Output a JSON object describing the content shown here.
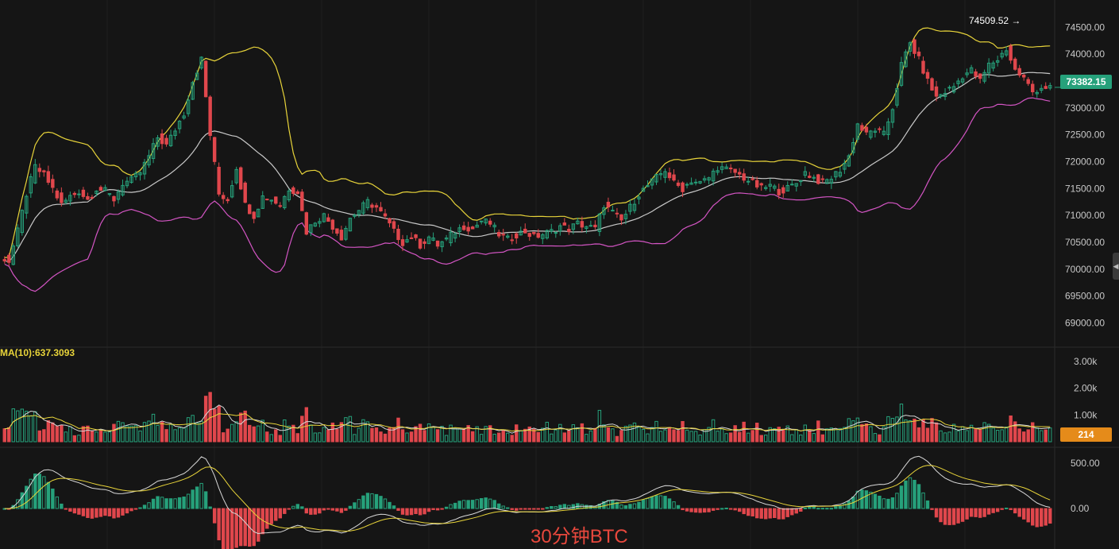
{
  "chart_data": {
    "type": "candlestick",
    "instrument": "BTC",
    "interval": "30分钟",
    "watermark": "30分钟BTC",
    "last_price": "73382.15",
    "high_marker": {
      "label": "74509.52",
      "arrow": "→"
    },
    "price_axis_ticks": [
      "74500.00",
      "74000.00",
      "73500.00",
      "73000.00",
      "72500.00",
      "72000.00",
      "71500.00",
      "71000.00",
      "70500.00",
      "70000.00",
      "69500.00",
      "69000.00"
    ],
    "price_range": [
      68800,
      74800
    ],
    "volume_indicator_label": "MA(10):637.3093",
    "volume_last": "214",
    "volume_axis_ticks": [
      "3.00k",
      "2.00k",
      "1.00k"
    ],
    "volume_range": [
      0,
      3300
    ],
    "macd_axis_ticks": [
      "500.00",
      "0.00"
    ],
    "macd_range": [
      -420,
      640
    ],
    "colors": {
      "up": "#26a17b",
      "down": "#e0474c",
      "bb_upper": "#e8d43a",
      "bb_mid": "#c9c9c9",
      "bb_lower": "#d455c4",
      "macd_dif": "#d8d8d8",
      "macd_dea": "#e8d43a",
      "vol_ma1": "#d8d8d8",
      "vol_ma2": "#e8d43a"
    },
    "series": [
      {
        "c": 70250
      },
      {
        "c": 70150
      },
      {
        "c": 70700
      },
      {
        "c": 71400
      },
      {
        "c": 71900
      },
      {
        "c": 71750
      },
      {
        "c": 71500
      },
      {
        "c": 71200
      },
      {
        "c": 71350
      },
      {
        "c": 71450
      },
      {
        "c": 71300
      },
      {
        "c": 71500
      },
      {
        "c": 71450
      },
      {
        "c": 71300
      },
      {
        "c": 71600
      },
      {
        "c": 71650
      },
      {
        "c": 71800
      },
      {
        "c": 72100
      },
      {
        "c": 72450
      },
      {
        "c": 72300
      },
      {
        "c": 72600
      },
      {
        "c": 72900
      },
      {
        "c": 73500
      },
      {
        "c": 73900
      },
      {
        "c": 72500
      },
      {
        "c": 71400
      },
      {
        "c": 71300
      },
      {
        "c": 71900
      },
      {
        "c": 71200
      },
      {
        "c": 71000
      },
      {
        "c": 71350
      },
      {
        "c": 71300
      },
      {
        "c": 71200
      },
      {
        "c": 71500
      },
      {
        "c": 71450
      },
      {
        "c": 70700
      },
      {
        "c": 70900
      },
      {
        "c": 71000
      },
      {
        "c": 70800
      },
      {
        "c": 70600
      },
      {
        "c": 70950
      },
      {
        "c": 71100
      },
      {
        "c": 71250
      },
      {
        "c": 71150
      },
      {
        "c": 70950
      },
      {
        "c": 70700
      },
      {
        "c": 70500
      },
      {
        "c": 70600
      },
      {
        "c": 70450
      },
      {
        "c": 70600
      },
      {
        "c": 70450
      },
      {
        "c": 70550
      },
      {
        "c": 70700
      },
      {
        "c": 70800
      },
      {
        "c": 70750
      },
      {
        "c": 70900
      },
      {
        "c": 70850
      },
      {
        "c": 70650
      },
      {
        "c": 70550
      },
      {
        "c": 70650
      },
      {
        "c": 70700
      },
      {
        "c": 70600
      },
      {
        "c": 70650
      },
      {
        "c": 70700
      },
      {
        "c": 70800
      },
      {
        "c": 70750
      },
      {
        "c": 70850
      },
      {
        "c": 70800
      },
      {
        "c": 70750
      },
      {
        "c": 71200
      },
      {
        "c": 71050
      },
      {
        "c": 70900
      },
      {
        "c": 71150
      },
      {
        "c": 71400
      },
      {
        "c": 71550
      },
      {
        "c": 71700
      },
      {
        "c": 71850
      },
      {
        "c": 71600
      },
      {
        "c": 71500
      },
      {
        "c": 71650
      },
      {
        "c": 71600
      },
      {
        "c": 71700
      },
      {
        "c": 71900
      },
      {
        "c": 71850
      },
      {
        "c": 71800
      },
      {
        "c": 71700
      },
      {
        "c": 71600
      },
      {
        "c": 71500
      },
      {
        "c": 71550
      },
      {
        "c": 71450
      },
      {
        "c": 71500
      },
      {
        "c": 71600
      },
      {
        "c": 71800
      },
      {
        "c": 71700
      },
      {
        "c": 71600
      },
      {
        "c": 71700
      },
      {
        "c": 71850
      },
      {
        "c": 72100
      },
      {
        "c": 72700
      },
      {
        "c": 72500
      },
      {
        "c": 72600
      },
      {
        "c": 72500
      },
      {
        "c": 73000
      },
      {
        "c": 73800
      },
      {
        "c": 74200
      },
      {
        "c": 73900
      },
      {
        "c": 73500
      },
      {
        "c": 73200
      },
      {
        "c": 73300
      },
      {
        "c": 73400
      },
      {
        "c": 73600
      },
      {
        "c": 73700
      },
      {
        "c": 73500
      },
      {
        "c": 73800
      },
      {
        "c": 73900
      },
      {
        "c": 74100
      },
      {
        "c": 73700
      },
      {
        "c": 73550
      },
      {
        "c": 73300
      },
      {
        "c": 73382.15
      }
    ]
  }
}
